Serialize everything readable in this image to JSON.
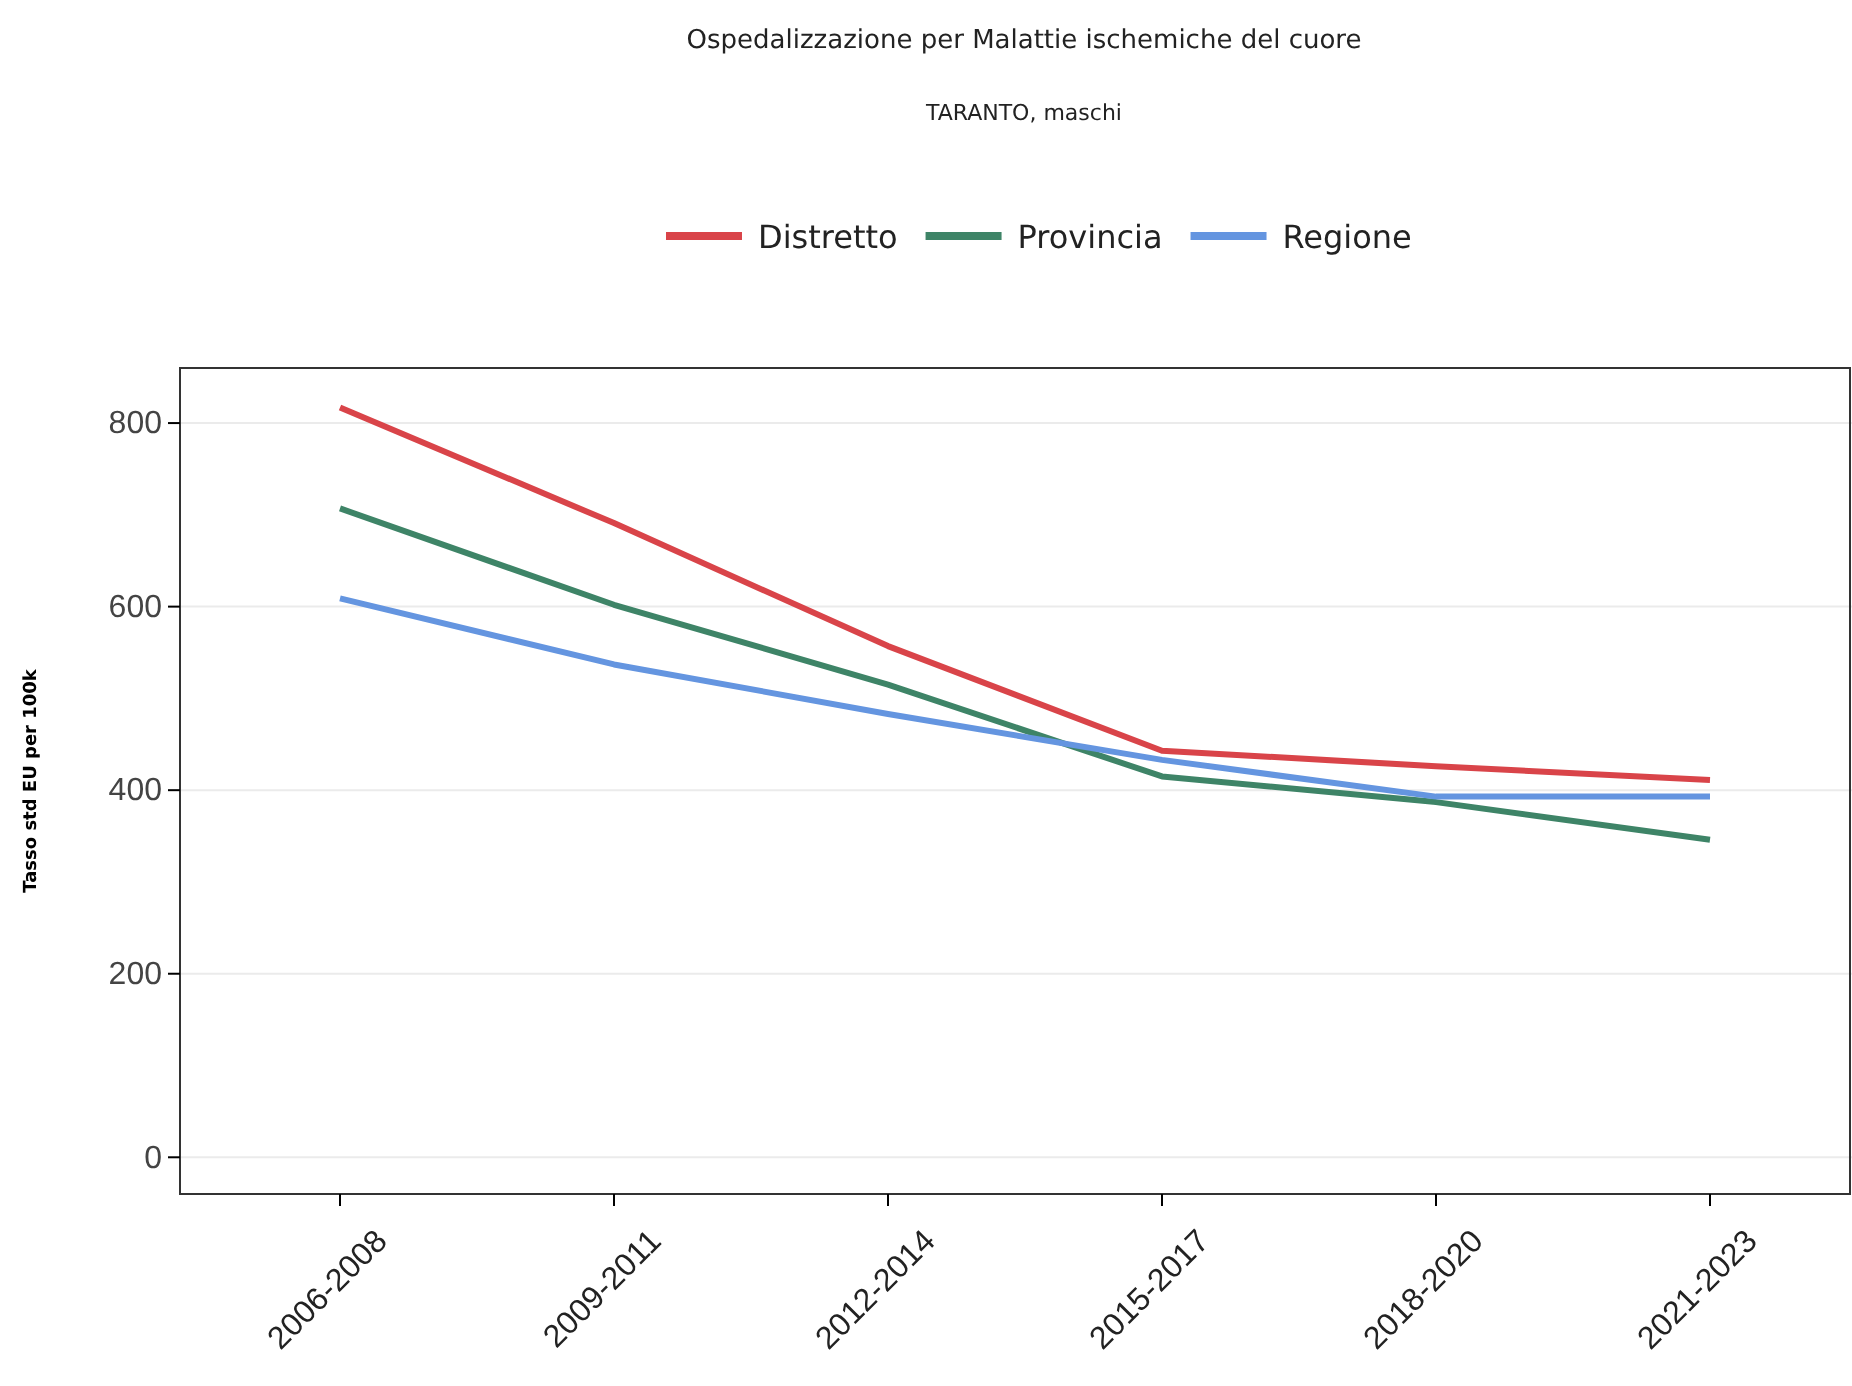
{
  "chart_data": {
    "type": "line",
    "title": "Ospedalizzazione per Malattie ischemiche del cuore",
    "subtitle": "TARANTO, maschi",
    "ylabel": "Tasso std EU per 100k",
    "categories": [
      "2006-2008",
      "2009-2011",
      "2012-2014",
      "2015-2017",
      "2018-2020",
      "2021-2023"
    ],
    "series": [
      {
        "name": "Distretto",
        "color": "#d94449",
        "values": [
          817,
          691,
          557,
          443,
          426,
          411
        ]
      },
      {
        "name": "Provincia",
        "color": "#3e8467",
        "values": [
          707,
          602,
          515,
          415,
          387,
          346
        ]
      },
      {
        "name": "Regione",
        "color": "#6495e0",
        "values": [
          609,
          537,
          483,
          433,
          393,
          393
        ]
      }
    ],
    "ylim": [
      -40,
      860
    ],
    "yticks": [
      0,
      200,
      400,
      600,
      800
    ],
    "grid": "y",
    "legend": "top",
    "marker": "none",
    "line_style": "solid"
  }
}
